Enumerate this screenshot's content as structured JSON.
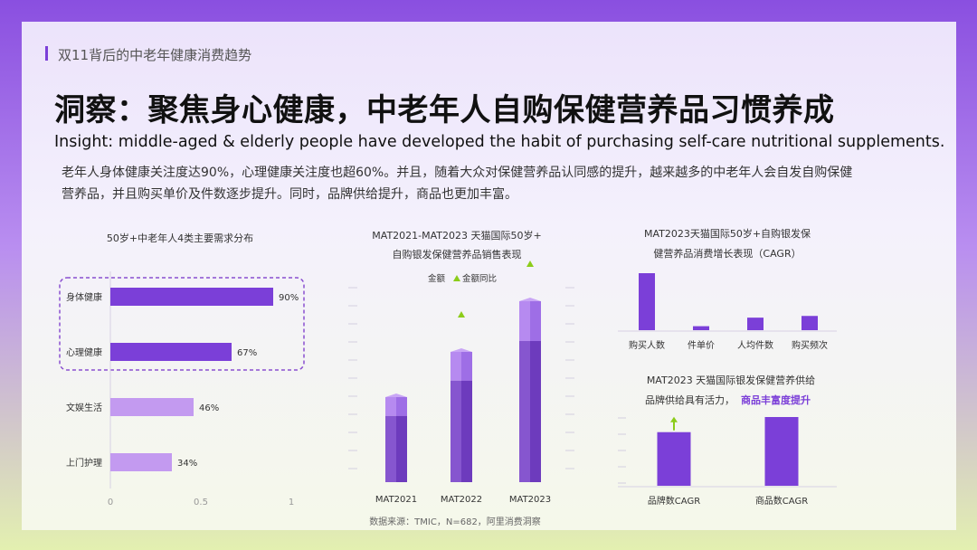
{
  "header": {
    "section_title": "双11背后的中老年健康消费趋势",
    "headline": "洞察：聚焦身心健康，中老年人自购保健营养品习惯养成",
    "subtitle": "Insight: middle-aged & elderly people have developed the habit of purchasing self-care nutritional supplements.",
    "description": "老年人身体健康关注度达90%，心理健康关注度也超60%。并且，随着大众对保健营养品认同感的提升，越来越多的中老年人会自发自购保健营养品，并且购买单价及件数逐步提升。同时，品牌供给提升，商品也更加丰富。"
  },
  "colors": {
    "primary": "#7b3fd8",
    "light_bar": "#c39af0",
    "accent_green": "#8ccc1a",
    "highlight_text": "#7b3fd8"
  },
  "chart_data": [
    {
      "type": "bar",
      "orientation": "horizontal",
      "title": "50岁+中老年人4类主要需求分布",
      "categories": [
        "身体健康",
        "心理健康",
        "文娱生活",
        "上门护理"
      ],
      "values": [
        0.9,
        0.67,
        0.46,
        0.34
      ],
      "value_labels": [
        "90%",
        "67%",
        "46%",
        "34%"
      ],
      "highlighted": [
        true,
        true,
        false,
        false
      ],
      "xticks": [
        "0",
        "0.5",
        "1"
      ],
      "xlim": [
        0,
        1
      ]
    },
    {
      "type": "bar",
      "title_line1": "MAT2021-MAT2023 天猫国际50岁+",
      "title_line2": "自购银发保健营养品销售表现",
      "legend": [
        "金额",
        "金额同比"
      ],
      "categories": [
        "MAT2021",
        "MAT2022",
        "MAT2023"
      ],
      "values": [
        0.47,
        0.72,
        1.0
      ],
      "growth_markers": [
        false,
        true,
        true
      ]
    },
    {
      "type": "bar",
      "title_line1": "MAT2023天猫国际50岁+自购银发保",
      "title_line2": "健营养品消费增长表现（CAGR）",
      "categories": [
        "购买人数",
        "件单价",
        "人均件数",
        "购买频次"
      ],
      "values": [
        1.0,
        0.07,
        0.22,
        0.25
      ]
    },
    {
      "type": "bar",
      "title": "MAT2023 天猫国际银发保健营养供给",
      "subtitle_plain": "品牌供给具有活力，",
      "subtitle_highlight": "商品丰富度提升",
      "categories": [
        "品牌数CAGR",
        "商品数CAGR"
      ],
      "values": [
        0.78,
        1.0
      ],
      "growth_markers": [
        true,
        false
      ]
    }
  ],
  "footer": {
    "source": "数据来源：TMIC，N=682，阿里消费洞察"
  }
}
